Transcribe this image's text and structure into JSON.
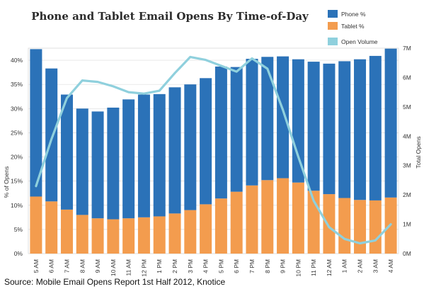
{
  "chart_data": {
    "type": "bar",
    "title": "Phone and Tablet Email Opens By Time-of-Day",
    "ylabel": "% of Opens",
    "y2label": "Total Opens",
    "ylim": [
      0,
      42.5
    ],
    "y2lim": [
      0,
      7000000
    ],
    "yticks": [
      "0%",
      "5%",
      "10%",
      "15%",
      "20%",
      "25%",
      "30%",
      "35%",
      "40%"
    ],
    "y2ticks": [
      "0M",
      "1M",
      "2M",
      "3M",
      "4M",
      "5M",
      "6M",
      "7M"
    ],
    "grid": true,
    "legend": "top-right",
    "categories": [
      "5 AM",
      "6 AM",
      "7 AM",
      "8 AM",
      "9 AM",
      "10 AM",
      "11 AM",
      "12 PM",
      "1 PM",
      "2 PM",
      "3 PM",
      "4 PM",
      "5 PM",
      "6 PM",
      "7 PM",
      "8 PM",
      "9 PM",
      "10 PM",
      "11 PM",
      "12 AM",
      "1 AM",
      "2 AM",
      "3 AM",
      "4 AM"
    ],
    "series": [
      {
        "name": "Phone %",
        "type": "stacked-bar",
        "color": "#2b72b8",
        "values": [
          30.5,
          27.5,
          23.8,
          22.0,
          22.1,
          23.1,
          24.6,
          25.4,
          25.3,
          26.1,
          26.0,
          26.1,
          27.3,
          25.8,
          26.2,
          25.5,
          25.2,
          25.5,
          26.7,
          27.0,
          28.3,
          29.1,
          29.9,
          30.8
        ]
      },
      {
        "name": "Tablet %",
        "type": "stacked-bar",
        "color": "#f39c4e",
        "values": [
          11.8,
          10.8,
          9.1,
          8.0,
          7.3,
          7.1,
          7.3,
          7.5,
          7.7,
          8.3,
          9.0,
          10.2,
          11.4,
          12.8,
          14.1,
          15.2,
          15.6,
          14.7,
          13.0,
          12.3,
          11.5,
          11.1,
          11.0,
          11.6
        ]
      },
      {
        "name": "Open Volume",
        "type": "line",
        "color": "#8fd0dd",
        "axis": "right",
        "values": [
          2300000,
          3900000,
          5300000,
          5900000,
          5850000,
          5700000,
          5500000,
          5450000,
          5550000,
          6150000,
          6700000,
          6600000,
          6400000,
          6200000,
          6650000,
          6300000,
          4900000,
          3300000,
          1800000,
          900000,
          500000,
          350000,
          450000,
          1000000
        ]
      }
    ],
    "source": "Source: Mobile Email Opens Report 1st Half 2012, Knotice"
  }
}
